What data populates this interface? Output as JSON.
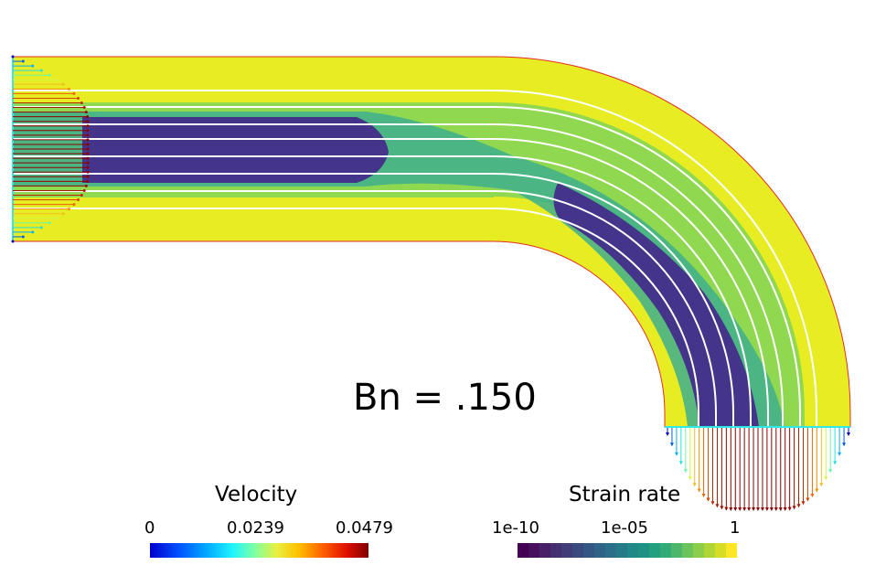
{
  "annotation": "Bn = .150",
  "velocity_legend": {
    "title": "Velocity",
    "ticks": [
      "0",
      "0.0239",
      "0.0479"
    ]
  },
  "strain_rate_legend": {
    "title": "Strain rate",
    "ticks": [
      "1e-10",
      "1e-05",
      "1"
    ],
    "scale": "log"
  },
  "colors": {
    "unyielded": "#e8ec22",
    "plug_core": "#44348a",
    "streamline": "#ffffff",
    "boundary": "#e03020",
    "inlet_edge": "#30e8e8"
  }
}
